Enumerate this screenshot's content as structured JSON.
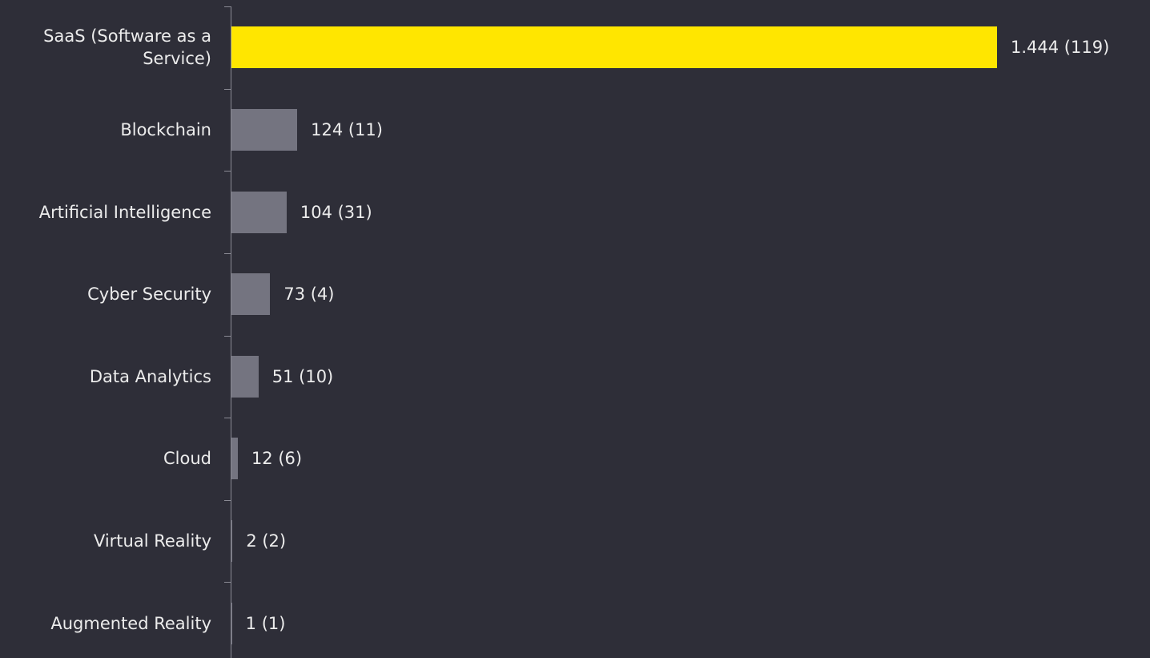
{
  "chart_data": {
    "type": "bar",
    "orientation": "horizontal",
    "categories": [
      "SaaS (Software as a Service)",
      "Blockchain",
      "Artificial Intelligence",
      "Cyber Security",
      "Data Analytics",
      "Cloud",
      "Virtual Reality",
      "Augmented Reality"
    ],
    "values": [
      1444,
      124,
      104,
      73,
      51,
      12,
      2,
      1
    ],
    "value_labels": [
      "1.444 (119)",
      "124 (11)",
      "104 (31)",
      "73 (4)",
      "51 (10)",
      "12 (6)",
      "2 (2)",
      "1 (1)"
    ],
    "colors": [
      "#ffe600",
      "#747480",
      "#747480",
      "#747480",
      "#747480",
      "#747480",
      "#747480",
      "#747480"
    ],
    "xlim": [
      0,
      1444
    ]
  }
}
